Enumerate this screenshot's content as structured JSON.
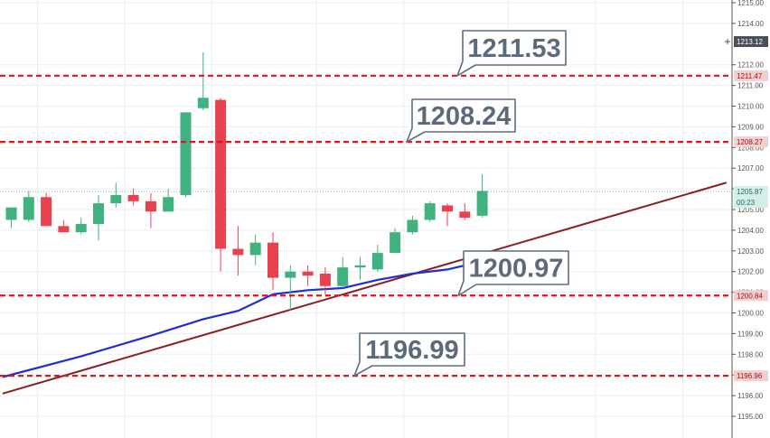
{
  "chart_data": {
    "type": "candlestick",
    "title": "",
    "ylim": [
      1194.0,
      1215.0
    ],
    "y_ticks": [
      "1195.00",
      "1196.00",
      "1197.00",
      "1198.00",
      "1199.00",
      "1200.00",
      "1201.00",
      "1202.00",
      "1203.00",
      "1204.00",
      "1205.00",
      "1206.00",
      "1207.00",
      "1208.00",
      "1209.00",
      "1210.00",
      "1211.00",
      "1212.00",
      "1214.00",
      "1215.00"
    ],
    "grid": true,
    "candles": [
      {
        "o": 1204.5,
        "h": 1205.1,
        "l": 1204.1,
        "c": 1205.1
      },
      {
        "o": 1204.5,
        "h": 1205.9,
        "l": 1204.4,
        "c": 1205.6
      },
      {
        "o": 1205.6,
        "h": 1205.8,
        "l": 1204.2,
        "c": 1204.2
      },
      {
        "o": 1204.2,
        "h": 1204.5,
        "l": 1203.9,
        "c": 1203.9
      },
      {
        "o": 1203.9,
        "h": 1204.6,
        "l": 1203.8,
        "c": 1204.3
      },
      {
        "o": 1204.3,
        "h": 1205.7,
        "l": 1203.5,
        "c": 1205.3
      },
      {
        "o": 1205.3,
        "h": 1206.3,
        "l": 1205.1,
        "c": 1205.7
      },
      {
        "o": 1205.7,
        "h": 1206.0,
        "l": 1205.2,
        "c": 1205.4
      },
      {
        "o": 1205.4,
        "h": 1205.8,
        "l": 1204.1,
        "c": 1204.9
      },
      {
        "o": 1204.9,
        "h": 1206.0,
        "l": 1204.9,
        "c": 1205.6
      },
      {
        "o": 1205.7,
        "h": 1209.7,
        "l": 1205.6,
        "c": 1209.7
      },
      {
        "o": 1209.9,
        "h": 1212.6,
        "l": 1209.8,
        "c": 1210.4
      },
      {
        "o": 1210.3,
        "h": 1210.4,
        "l": 1202.0,
        "c": 1203.1
      },
      {
        "o": 1203.1,
        "h": 1204.2,
        "l": 1201.8,
        "c": 1202.8
      },
      {
        "o": 1202.8,
        "h": 1203.8,
        "l": 1202.3,
        "c": 1203.4
      },
      {
        "o": 1203.4,
        "h": 1203.9,
        "l": 1201.1,
        "c": 1201.7
      },
      {
        "o": 1201.7,
        "h": 1202.3,
        "l": 1200.1,
        "c": 1202.0
      },
      {
        "o": 1202.0,
        "h": 1202.3,
        "l": 1201.3,
        "c": 1201.8
      },
      {
        "o": 1201.9,
        "h": 1202.2,
        "l": 1200.9,
        "c": 1201.3
      },
      {
        "o": 1201.3,
        "h": 1202.7,
        "l": 1201.2,
        "c": 1202.2
      },
      {
        "o": 1202.2,
        "h": 1202.7,
        "l": 1201.6,
        "c": 1202.3
      },
      {
        "o": 1202.1,
        "h": 1203.3,
        "l": 1202.0,
        "c": 1202.9
      },
      {
        "o": 1202.9,
        "h": 1204.1,
        "l": 1202.9,
        "c": 1203.9
      },
      {
        "o": 1203.9,
        "h": 1204.7,
        "l": 1203.8,
        "c": 1204.5
      },
      {
        "o": 1204.5,
        "h": 1205.4,
        "l": 1204.4,
        "c": 1205.3
      },
      {
        "o": 1205.2,
        "h": 1205.3,
        "l": 1204.2,
        "c": 1204.9
      },
      {
        "o": 1204.9,
        "h": 1205.3,
        "l": 1204.5,
        "c": 1204.6
      },
      {
        "o": 1204.7,
        "h": 1206.7,
        "l": 1204.6,
        "c": 1205.9
      }
    ],
    "moving_average": {
      "color": "#1f2fd1",
      "points": [
        {
          "candle": -0.5,
          "y": 1196.9
        },
        {
          "candle": 4,
          "y": 1197.9
        },
        {
          "candle": 8,
          "y": 1198.9
        },
        {
          "candle": 11,
          "y": 1199.7
        },
        {
          "candle": 13,
          "y": 1200.1
        },
        {
          "candle": 15,
          "y": 1200.9
        },
        {
          "candle": 17,
          "y": 1201.1
        },
        {
          "candle": 19,
          "y": 1201.2
        },
        {
          "candle": 21,
          "y": 1201.6
        },
        {
          "candle": 23,
          "y": 1201.9
        },
        {
          "candle": 25,
          "y": 1202.1
        },
        {
          "candle": 27,
          "y": 1202.5
        }
      ]
    },
    "trendline": {
      "color": "#8b1f1f",
      "start": {
        "candle": -0.5,
        "y": 1196.1
      },
      "end": {
        "candle": 41,
        "y": 1206.3
      }
    },
    "levels": [
      {
        "value": 1211.47,
        "badge": "1211.47",
        "label": "1211.53"
      },
      {
        "value": 1208.27,
        "badge": "1208.27",
        "label": "1208.24"
      },
      {
        "value": 1200.84,
        "badge": "1200.84",
        "label": "1200.97"
      },
      {
        "value": 1196.96,
        "badge": "1196.96",
        "label": "1196.99"
      }
    ],
    "current_price": {
      "value": "1205.87",
      "countdown": "00:23"
    },
    "crosshair_price": "1213.12",
    "colors": {
      "up": "#3fb27f",
      "down": "#e8424f",
      "level_line": "#e0161b",
      "grid": "#e9eef4",
      "callout_border": "#5e6e80"
    }
  }
}
